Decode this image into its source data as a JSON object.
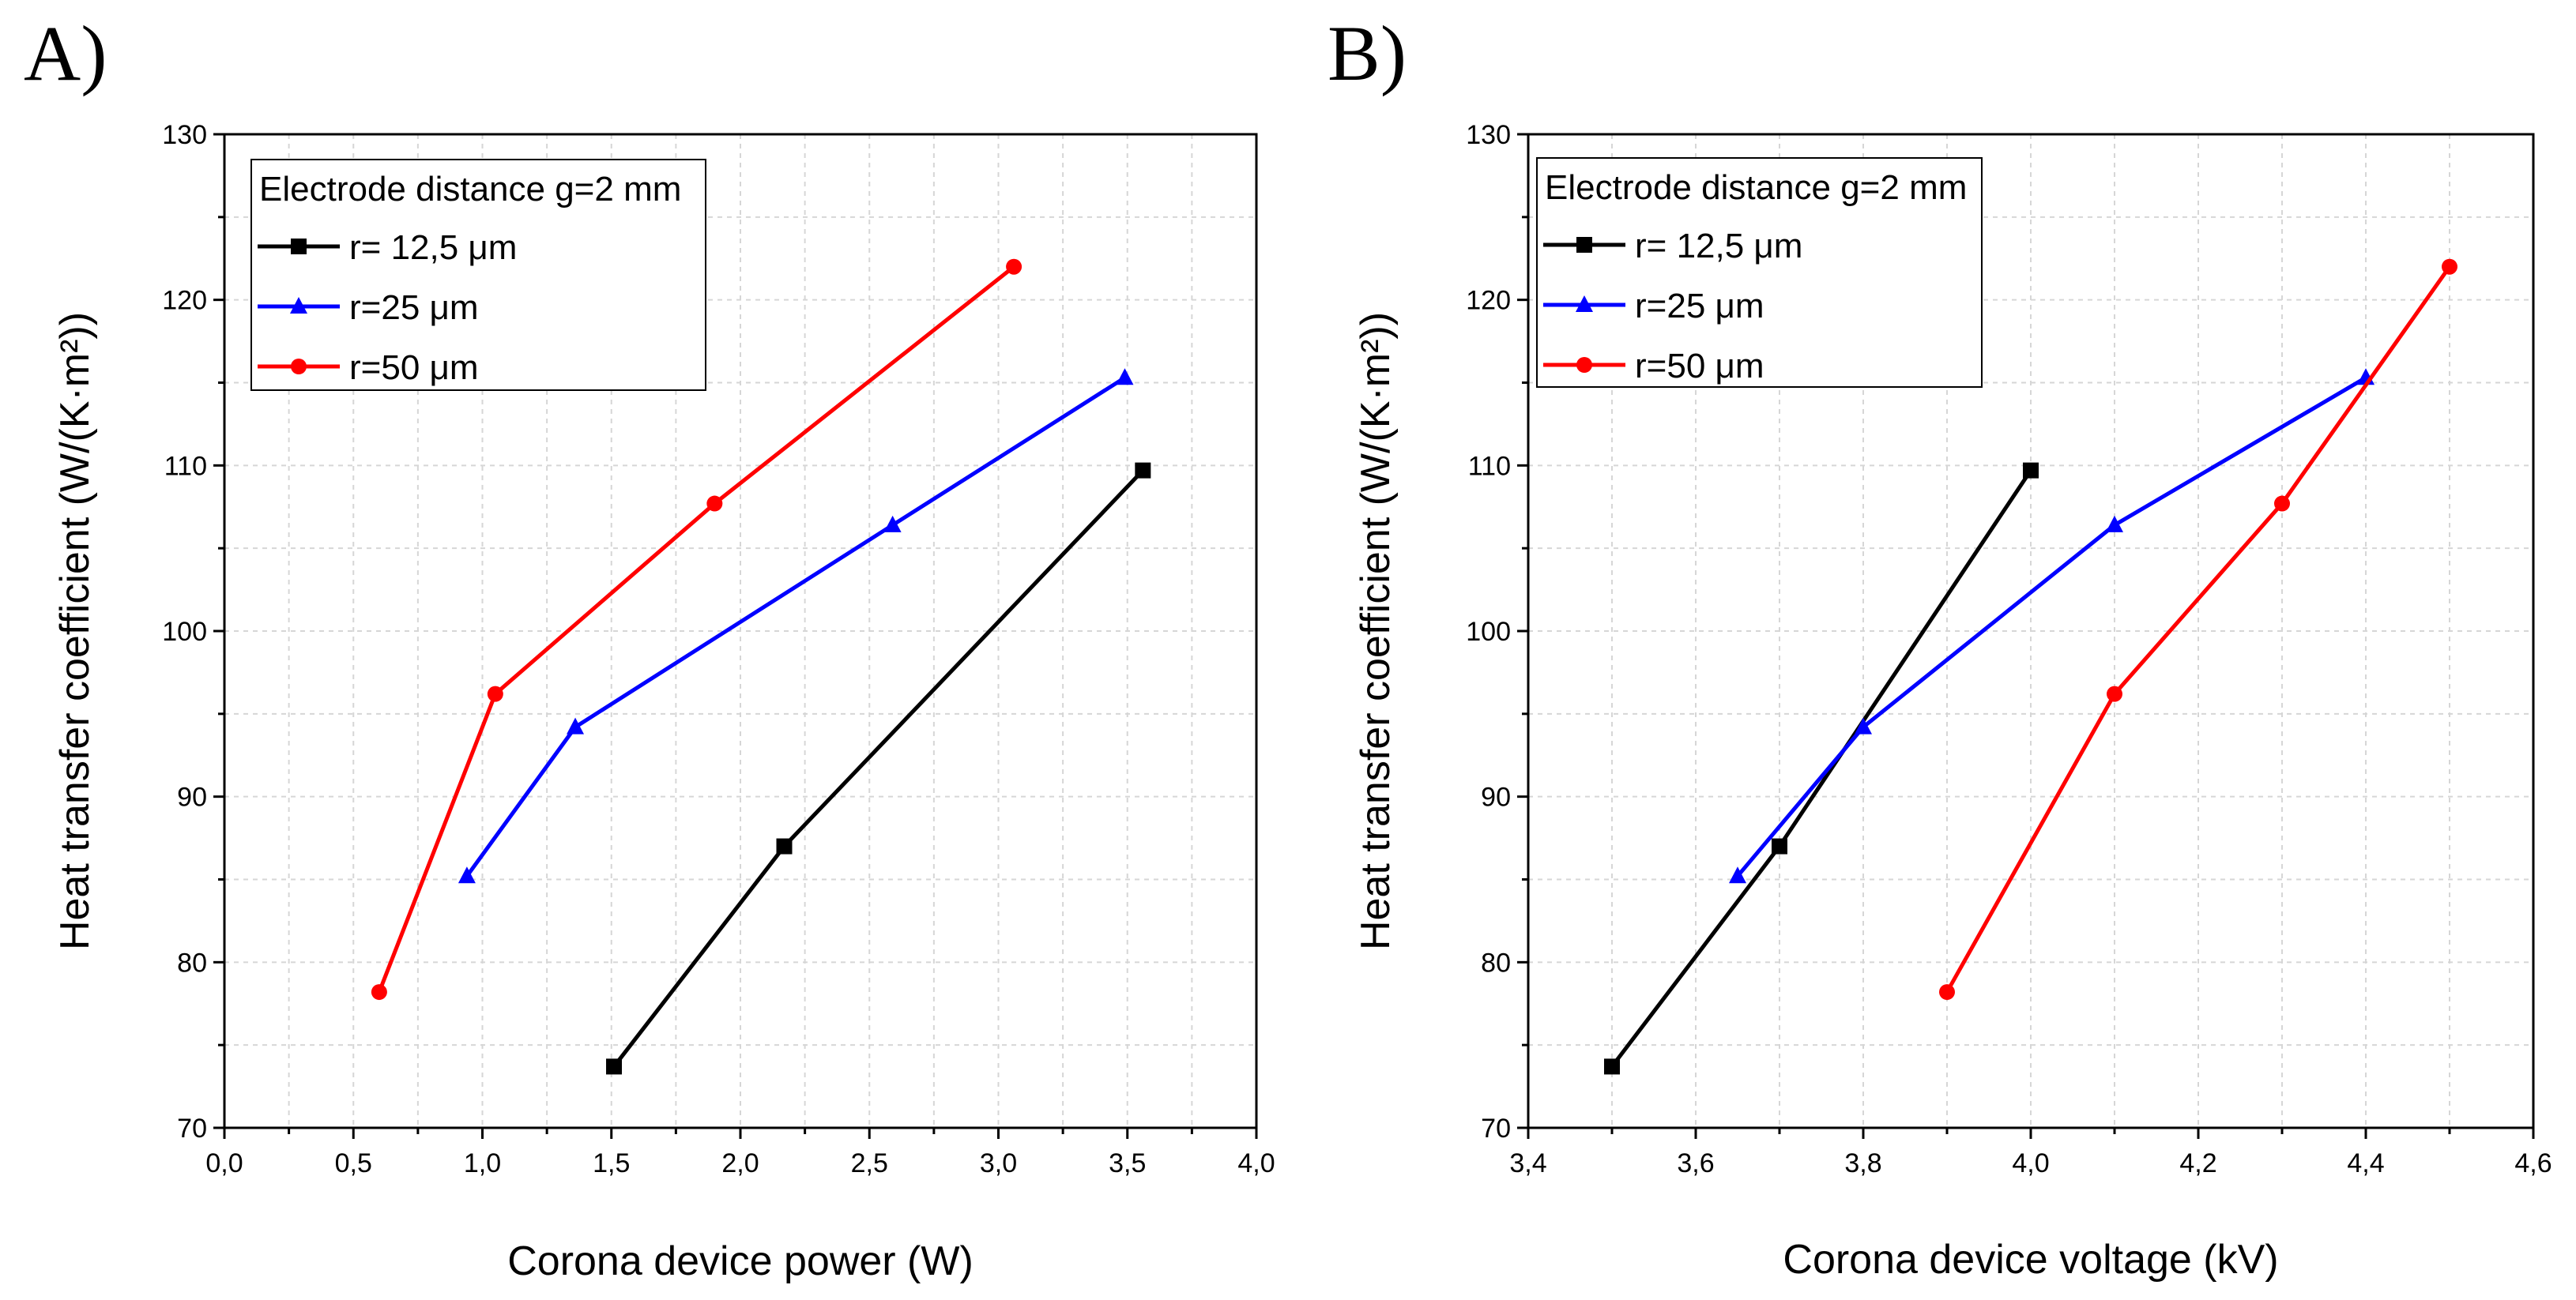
{
  "chart_data": [
    {
      "panel": "A)",
      "type": "line",
      "xlabel": "Corona device power (W)",
      "ylabel": "Heat transfer coefficient (W/(K·m²))",
      "xlim": [
        0.0,
        4.0
      ],
      "ylim": [
        70,
        130
      ],
      "xticks": [
        "0,0",
        "0,5",
        "1,0",
        "1,5",
        "2,0",
        "2,5",
        "3,0",
        "3,5",
        "4,0"
      ],
      "yticks": [
        "70",
        "80",
        "90",
        "100",
        "110",
        "120",
        "130"
      ],
      "grid": true,
      "legend_title": "Electrode distance g=2 mm",
      "legend_position": "top-left",
      "series": [
        {
          "name": "r= 12,5 μm",
          "color": "#000000",
          "marker": "square",
          "x": [
            1.51,
            2.17,
            3.56
          ],
          "y": [
            73.7,
            87.0,
            109.7
          ]
        },
        {
          "name": "r=25 μm",
          "color": "#0000ff",
          "marker": "triangle",
          "x": [
            0.94,
            1.36,
            2.59,
            3.49
          ],
          "y": [
            85.2,
            94.2,
            106.4,
            115.3
          ]
        },
        {
          "name": "r=50 μm",
          "color": "#ff0000",
          "marker": "circle",
          "x": [
            0.6,
            1.05,
            1.9,
            3.06
          ],
          "y": [
            78.2,
            96.2,
            107.7,
            122.0
          ]
        }
      ]
    },
    {
      "panel": "B)",
      "type": "line",
      "xlabel": "Corona device voltage (kV)",
      "ylabel": "Heat transfer coefficient (W/(K·m²))",
      "xlim": [
        3.4,
        4.6
      ],
      "ylim": [
        70,
        130
      ],
      "xticks": [
        "3,4",
        "3,6",
        "3,8",
        "4,0",
        "4,2",
        "4,4",
        "4,6"
      ],
      "yticks": [
        "70",
        "80",
        "90",
        "100",
        "110",
        "120",
        "130"
      ],
      "grid": true,
      "legend_title": "Electrode distance g=2 mm",
      "legend_position": "top-left",
      "series": [
        {
          "name": "r= 12,5 μm",
          "color": "#000000",
          "marker": "square",
          "x": [
            3.5,
            3.7,
            4.0
          ],
          "y": [
            73.7,
            87.0,
            109.7
          ]
        },
        {
          "name": "r=25 μm",
          "color": "#0000ff",
          "marker": "triangle",
          "x": [
            3.65,
            3.8,
            4.1,
            4.4
          ],
          "y": [
            85.2,
            94.2,
            106.4,
            115.3
          ]
        },
        {
          "name": "r=50 μm",
          "color": "#ff0000",
          "marker": "circle",
          "x": [
            3.9,
            4.1,
            4.3,
            4.5
          ],
          "y": [
            78.2,
            96.2,
            107.7,
            122.0
          ]
        }
      ]
    }
  ]
}
